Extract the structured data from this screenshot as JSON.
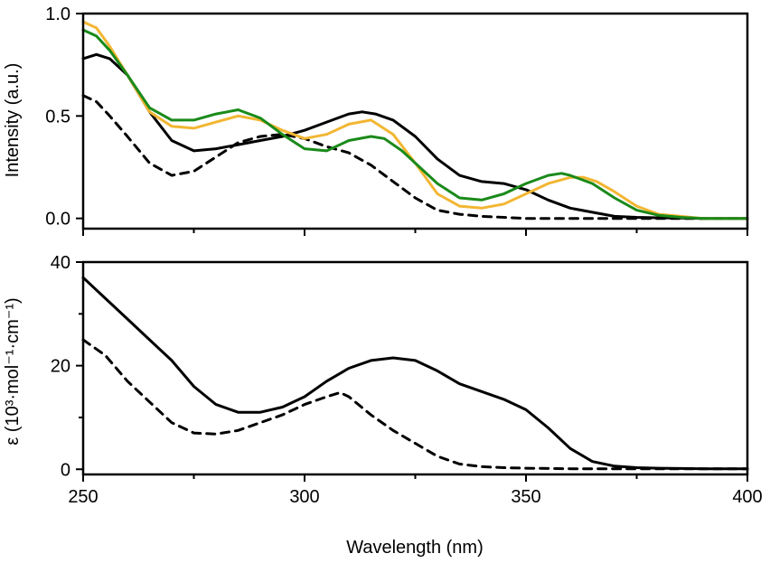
{
  "chart_data": [
    {
      "type": "line",
      "panel": "top",
      "title": "",
      "xlabel": "",
      "ylabel": "Intensity (a.u.)",
      "xlim": [
        250,
        400
      ],
      "ylim": [
        -0.05,
        1.0
      ],
      "xticks": [
        250,
        300,
        350,
        400
      ],
      "yticks": [
        0.0,
        0.5,
        1.0
      ],
      "ytick_labels": [
        "0.0",
        "0.5",
        "1.0"
      ],
      "xticks_minor": [
        275,
        325,
        375
      ],
      "grid": false,
      "legend": "none",
      "series": [
        {
          "color": "#000000",
          "dash": "solid",
          "x": [
            250,
            253,
            256,
            260,
            265,
            270,
            275,
            280,
            285,
            290,
            295,
            300,
            305,
            310,
            313,
            316,
            320,
            325,
            330,
            335,
            340,
            345,
            350,
            355,
            360,
            365,
            370,
            375,
            380,
            385,
            390,
            395,
            400
          ],
          "y": [
            0.78,
            0.8,
            0.78,
            0.7,
            0.52,
            0.38,
            0.33,
            0.34,
            0.36,
            0.38,
            0.4,
            0.43,
            0.47,
            0.51,
            0.52,
            0.51,
            0.48,
            0.4,
            0.29,
            0.21,
            0.18,
            0.17,
            0.14,
            0.09,
            0.05,
            0.03,
            0.01,
            0.005,
            0.003,
            0.002,
            0.0,
            0.0,
            0.0
          ]
        },
        {
          "color": "#000000",
          "dash": "dashed",
          "x": [
            250,
            253,
            256,
            260,
            265,
            270,
            275,
            280,
            285,
            290,
            295,
            300,
            305,
            310,
            315,
            320,
            325,
            330,
            335,
            340,
            345,
            350,
            355,
            360,
            370,
            380,
            390,
            400
          ],
          "y": [
            0.6,
            0.57,
            0.5,
            0.4,
            0.27,
            0.21,
            0.23,
            0.3,
            0.37,
            0.4,
            0.41,
            0.39,
            0.35,
            0.32,
            0.26,
            0.18,
            0.1,
            0.04,
            0.02,
            0.01,
            0.005,
            0.0,
            0.0,
            0.0,
            0.0,
            0.0,
            0.0,
            0.0
          ]
        },
        {
          "color": "#f2b632",
          "dash": "solid",
          "x": [
            250,
            253,
            256,
            260,
            265,
            270,
            275,
            280,
            285,
            290,
            295,
            300,
            305,
            310,
            315,
            320,
            325,
            330,
            335,
            340,
            345,
            350,
            355,
            360,
            363,
            366,
            370,
            375,
            380,
            385,
            390,
            395,
            400
          ],
          "y": [
            0.96,
            0.93,
            0.84,
            0.7,
            0.52,
            0.45,
            0.44,
            0.47,
            0.5,
            0.48,
            0.43,
            0.39,
            0.41,
            0.46,
            0.48,
            0.41,
            0.27,
            0.12,
            0.06,
            0.05,
            0.07,
            0.12,
            0.17,
            0.2,
            0.2,
            0.18,
            0.13,
            0.06,
            0.02,
            0.01,
            0.0,
            0.0,
            0.0
          ]
        },
        {
          "color": "#1a8a1a",
          "dash": "solid",
          "x": [
            250,
            253,
            256,
            260,
            265,
            270,
            275,
            280,
            285,
            290,
            295,
            300,
            305,
            310,
            315,
            318,
            322,
            325,
            330,
            335,
            340,
            345,
            350,
            355,
            358,
            360,
            365,
            370,
            375,
            380,
            385,
            390,
            395,
            400
          ],
          "y": [
            0.92,
            0.89,
            0.82,
            0.7,
            0.54,
            0.48,
            0.48,
            0.51,
            0.53,
            0.49,
            0.41,
            0.34,
            0.33,
            0.38,
            0.4,
            0.39,
            0.33,
            0.27,
            0.17,
            0.1,
            0.09,
            0.12,
            0.17,
            0.21,
            0.22,
            0.21,
            0.17,
            0.1,
            0.04,
            0.015,
            0.005,
            0.0,
            0.0,
            0.0
          ]
        }
      ]
    },
    {
      "type": "line",
      "panel": "bottom",
      "title": "",
      "xlabel": "Wavelength (nm)",
      "ylabel": "ε (10³·mol⁻¹·cm⁻¹)",
      "xlim": [
        250,
        400
      ],
      "ylim": [
        -1,
        40
      ],
      "xticks": [
        250,
        300,
        350,
        400
      ],
      "xtick_labels": [
        "250",
        "300",
        "350",
        "400"
      ],
      "yticks": [
        0,
        20,
        40
      ],
      "ytick_labels": [
        "0",
        "20",
        "40"
      ],
      "yticks_minor": [
        10,
        30
      ],
      "xticks_minor": [
        275,
        325,
        375
      ],
      "grid": false,
      "legend": "none",
      "series": [
        {
          "color": "#000000",
          "dash": "solid",
          "x": [
            250,
            255,
            260,
            265,
            270,
            275,
            280,
            285,
            290,
            295,
            300,
            305,
            310,
            315,
            320,
            325,
            330,
            335,
            340,
            345,
            350,
            355,
            360,
            365,
            370,
            375,
            380,
            390,
            400
          ],
          "y": [
            37,
            33,
            29,
            25,
            21,
            16,
            12.5,
            11,
            11,
            12,
            14,
            17,
            19.5,
            21,
            21.5,
            21,
            19,
            16.5,
            15,
            13.5,
            11.5,
            8,
            4,
            1.5,
            0.6,
            0.3,
            0.2,
            0.1,
            0.1
          ]
        },
        {
          "color": "#000000",
          "dash": "dashed",
          "x": [
            250,
            255,
            260,
            265,
            270,
            275,
            280,
            285,
            290,
            295,
            300,
            305,
            308,
            310,
            315,
            320,
            325,
            330,
            335,
            340,
            345,
            350,
            360,
            370,
            380,
            390,
            400
          ],
          "y": [
            25,
            22,
            17,
            13,
            9,
            7,
            6.8,
            7.5,
            9,
            10.5,
            12.5,
            14,
            14.8,
            14,
            10.5,
            7.5,
            5,
            2.5,
            1,
            0.5,
            0.3,
            0.2,
            0.1,
            0.1,
            0.1,
            0.1,
            0.1
          ]
        }
      ]
    }
  ]
}
